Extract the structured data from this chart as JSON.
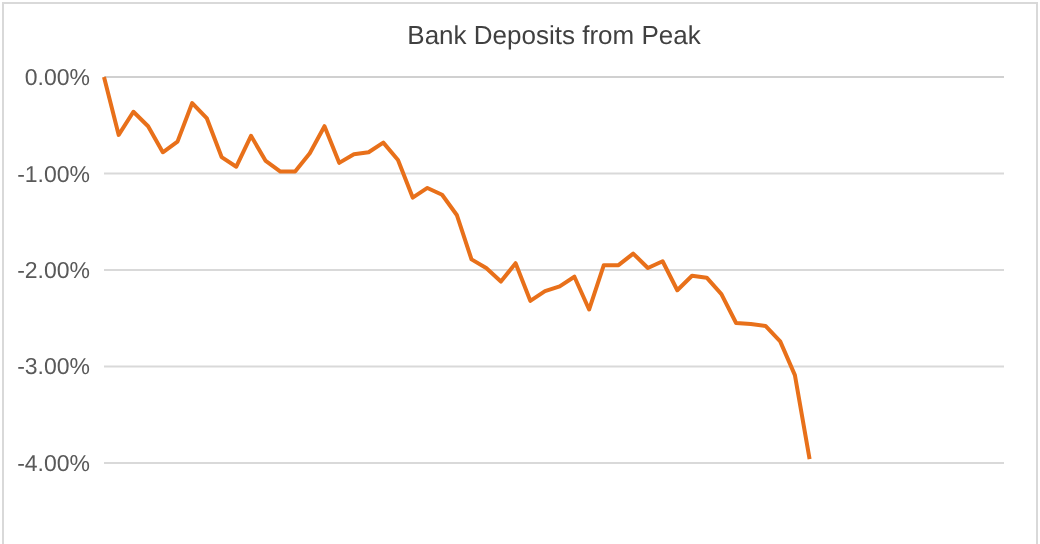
{
  "chart_data": {
    "type": "line",
    "title": "Bank Deposits from Peak",
    "categories": [
      null,
      null,
      null,
      null,
      null,
      null,
      null,
      null,
      null,
      null,
      null,
      null,
      null,
      null,
      null,
      null,
      null,
      null,
      null,
      null,
      null,
      null,
      null,
      null,
      null,
      null,
      null,
      null,
      null,
      null,
      null,
      null,
      null,
      null,
      null,
      null,
      null,
      null,
      null,
      null,
      null,
      null,
      null,
      null,
      null,
      null,
      null,
      null,
      null,
      null,
      null,
      null,
      null,
      null,
      null,
      null,
      null,
      null,
      null,
      null,
      null,
      null
    ],
    "series": [
      {
        "color": "#e8701a",
        "values": [
          0,
          -0.6,
          -0.36,
          -0.51,
          -0.78,
          -0.67,
          -0.27,
          -0.43,
          -0.83,
          -0.93,
          -0.61,
          -0.87,
          -0.98,
          -0.98,
          -0.79,
          -0.51,
          -0.89,
          -0.8,
          -0.78,
          -0.68,
          -0.86,
          -1.25,
          -1.15,
          -1.22,
          -1.43,
          -1.89,
          -1.98,
          -2.12,
          -1.93,
          -2.32,
          -2.22,
          -2.17,
          -2.07,
          -2.41,
          -1.95,
          -1.95,
          -1.83,
          -1.98,
          -1.91,
          -2.21,
          -2.06,
          -2.08,
          -2.25,
          -2.55,
          -2.56,
          -2.58,
          -2.74,
          -3.09,
          -3.96,
          null,
          null,
          null,
          null,
          null,
          null,
          null,
          null,
          null,
          null,
          null,
          null,
          null
        ]
      }
    ],
    "ylim": [
      -4.83,
      0
    ],
    "yticks": [
      {
        "value": 0,
        "label": "0.00%"
      },
      {
        "value": -1,
        "label": "-1.00%"
      },
      {
        "value": -2,
        "label": "-2.00%"
      },
      {
        "value": -3,
        "label": "-3.00%"
      },
      {
        "value": -4,
        "label": "-4.00%"
      }
    ],
    "grid": "y",
    "line_style": "solid",
    "marker": "none"
  }
}
